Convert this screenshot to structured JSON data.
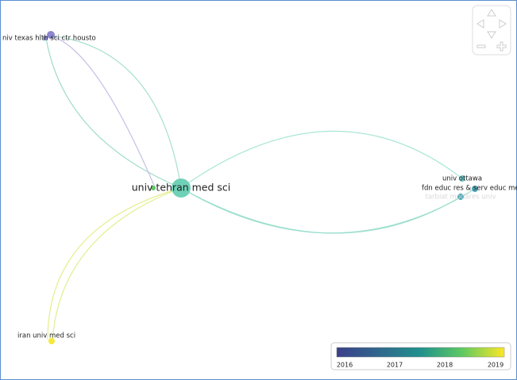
{
  "nodes": [
    {
      "label": "univ tehran med sci"
    },
    {
      "label": "niv texas hlth sci ctr housto"
    },
    {
      "label": "iran univ med sci"
    },
    {
      "label": "univ ottawa"
    },
    {
      "label": "fdn educ res & serv educ me"
    },
    {
      "label": "tarbiat modares univ"
    }
  ],
  "legend": {
    "ticks": [
      2016,
      2017,
      2018,
      2019
    ]
  }
}
